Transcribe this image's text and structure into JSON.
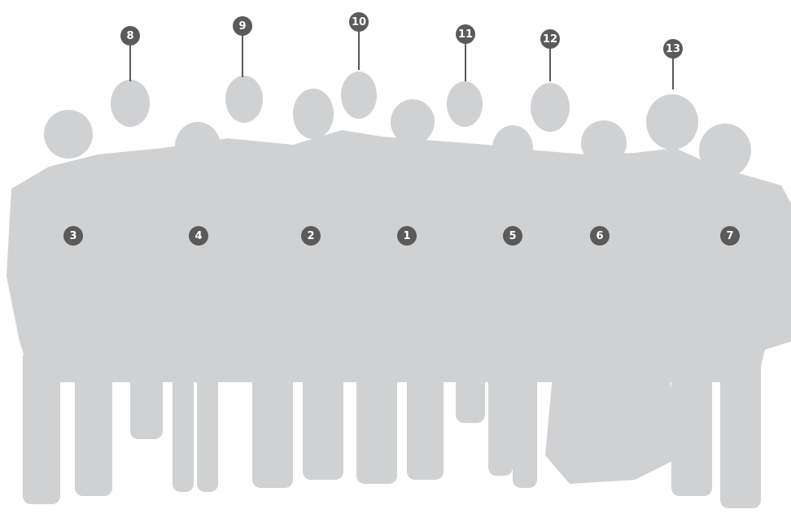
{
  "markers": [
    "1",
    "2",
    "3",
    "4",
    "5",
    "6",
    "7",
    "8",
    "9",
    "10",
    "11",
    "12",
    "13"
  ]
}
